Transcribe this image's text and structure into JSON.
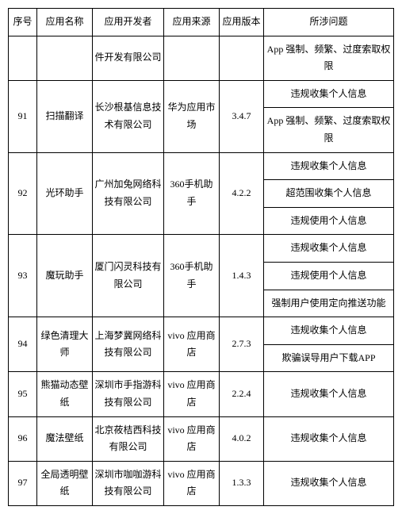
{
  "headers": {
    "seq": "序号",
    "name": "应用名称",
    "dev": "应用开发者",
    "src": "应用来源",
    "ver": "应用版本",
    "issue": "所涉问题"
  },
  "rows": [
    {
      "seq": "",
      "name": "",
      "dev": "件开发有限公司",
      "src": "",
      "ver": "",
      "issues": [
        "App 强制、频繁、过度索取权限"
      ]
    },
    {
      "seq": "91",
      "name": "扫描翻译",
      "dev": "长沙根基信息技术有限公司",
      "src": "华为应用市场",
      "ver": "3.4.7",
      "issues": [
        "违规收集个人信息",
        "App 强制、频繁、过度索取权限"
      ]
    },
    {
      "seq": "92",
      "name": "光环助手",
      "dev": "广州加兔网络科技有限公司",
      "src": "360手机助手",
      "ver": "4.2.2",
      "issues": [
        "违规收集个人信息",
        "超范围收集个人信息",
        "违规使用个人信息"
      ]
    },
    {
      "seq": "93",
      "name": "魔玩助手",
      "dev": "厦门闪灵科技有限公司",
      "src": "360手机助手",
      "ver": "1.4.3",
      "issues": [
        "违规收集个人信息",
        "违规使用个人信息",
        "强制用户使用定向推送功能"
      ]
    },
    {
      "seq": "94",
      "name": "绿色清理大师",
      "dev": "上海梦冀网络科技有限公司",
      "src": "vivo 应用商店",
      "ver": "2.7.3",
      "issues": [
        "违规收集个人信息",
        "欺骗误导用户下载APP"
      ]
    },
    {
      "seq": "95",
      "name": "熊猫动态壁纸",
      "dev": "深圳市手指游科技有限公司",
      "src": "vivo 应用商店",
      "ver": "2.2.4",
      "issues": [
        "违规收集个人信息"
      ]
    },
    {
      "seq": "96",
      "name": "魔法壁纸",
      "dev": "北京莜桔西科技有限公司",
      "src": "vivo 应用商店",
      "ver": "4.0.2",
      "issues": [
        "违规收集个人信息"
      ]
    },
    {
      "seq": "97",
      "name": "全局透明壁纸",
      "dev": "深圳市咖咖游科技有限公司",
      "src": "vivo 应用商店",
      "ver": "1.3.3",
      "issues": [
        "违规收集个人信息"
      ]
    }
  ]
}
